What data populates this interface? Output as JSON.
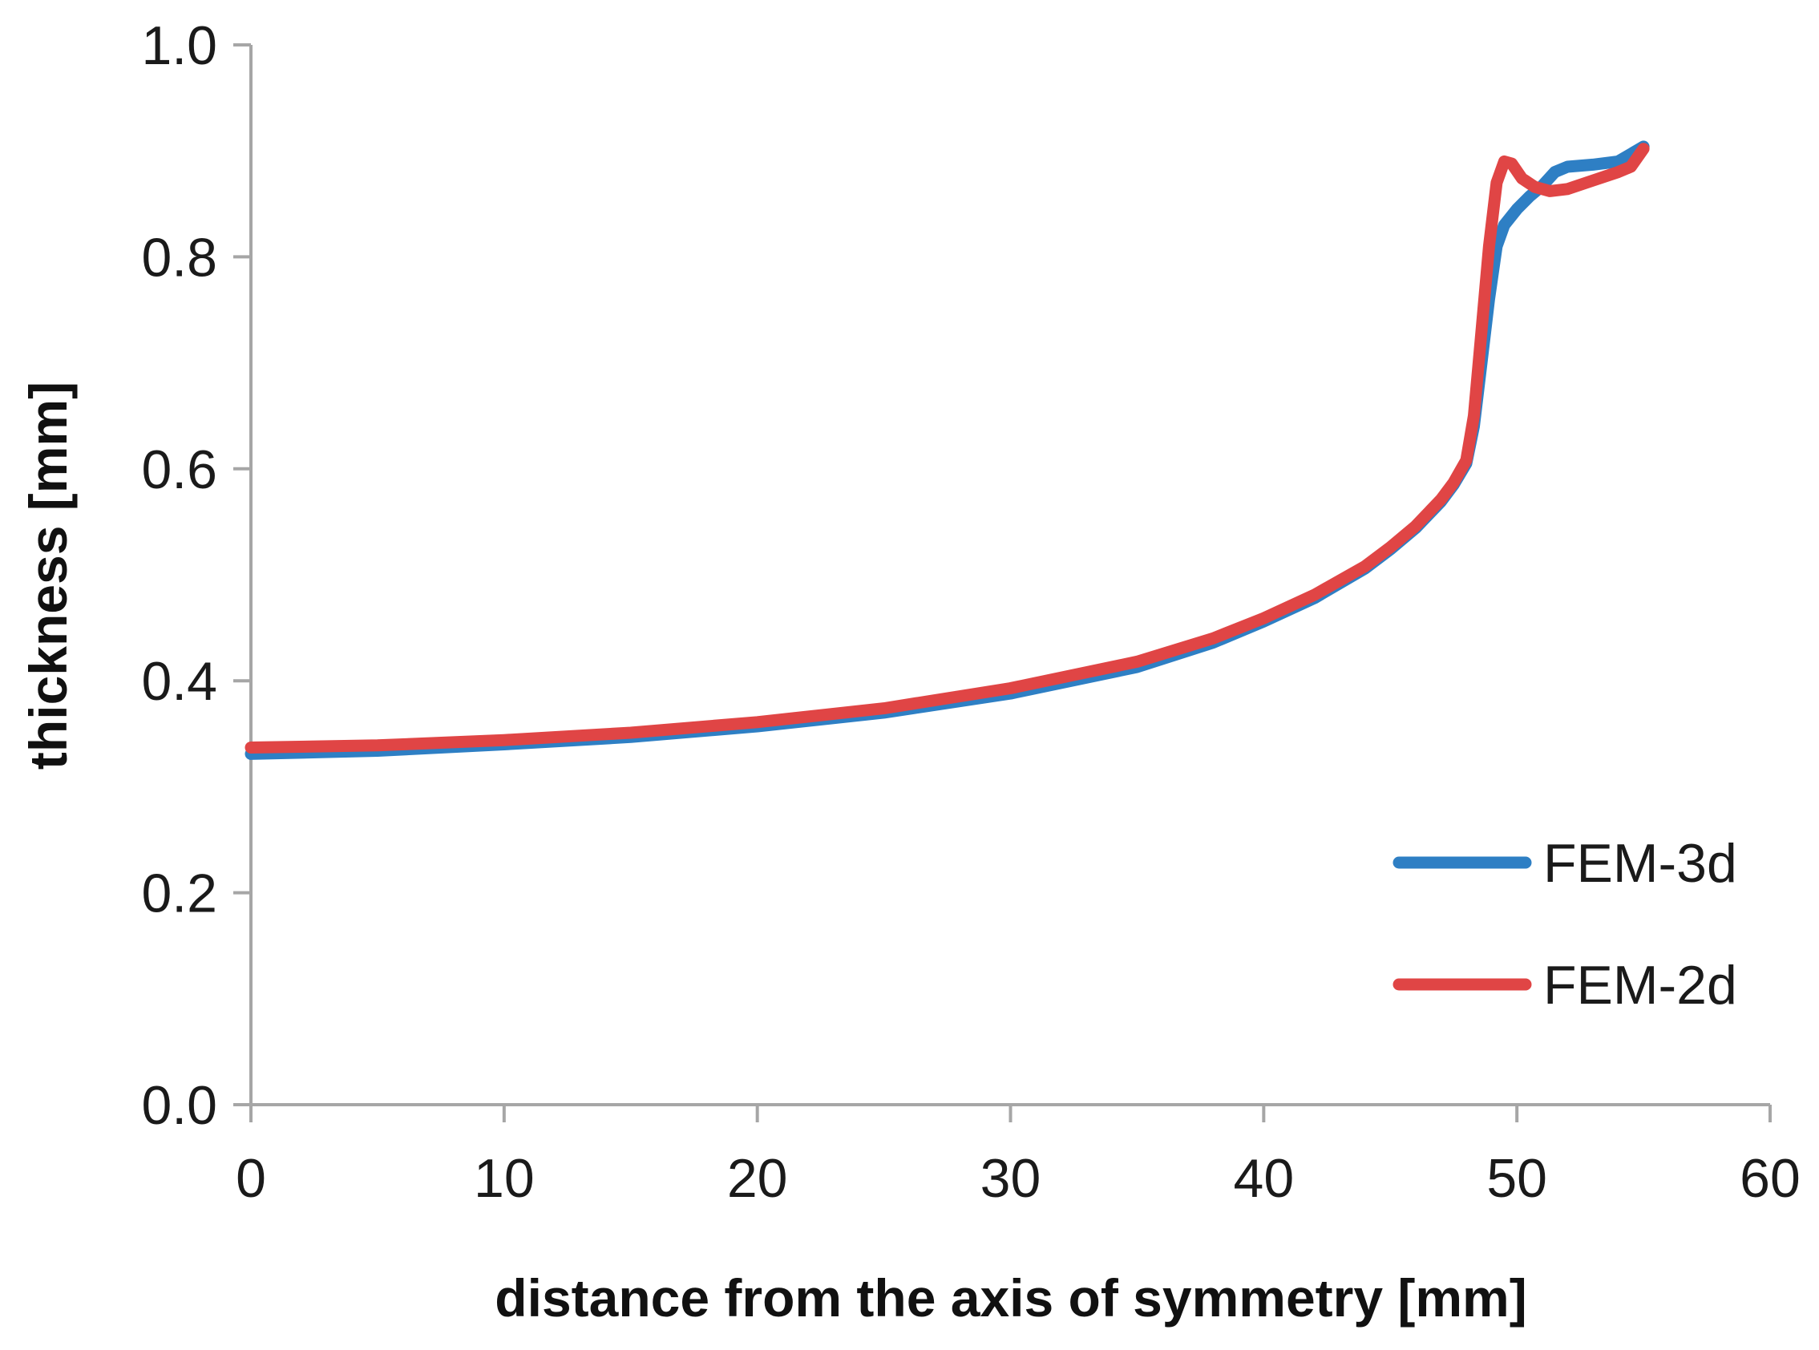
{
  "chart_data": {
    "type": "line",
    "title": "",
    "xlabel": "distance from the axis of symmetry [mm]",
    "ylabel": "thickness [mm]",
    "xlim": [
      0,
      60
    ],
    "ylim": [
      0.0,
      1.0
    ],
    "x_ticks": [
      0,
      10,
      20,
      30,
      40,
      50,
      60
    ],
    "y_ticks": [
      0.0,
      0.2,
      0.4,
      0.6,
      0.8,
      1.0
    ],
    "x_tick_labels": [
      "0",
      "10",
      "20",
      "30",
      "40",
      "50",
      "60"
    ],
    "y_tick_labels": [
      "0.0",
      "0.2",
      "0.4",
      "0.6",
      "0.8",
      "1.0"
    ],
    "grid": false,
    "legend_position": "bottom-right",
    "series": [
      {
        "name": "FEM-3d",
        "color": "#2e7fc4",
        "x": [
          0,
          5,
          10,
          15,
          20,
          25,
          30,
          35,
          38,
          40,
          42,
          44,
          45,
          46,
          47,
          47.5,
          48,
          48.3,
          48.6,
          48.9,
          49.2,
          49.5,
          50,
          50.5,
          51,
          51.5,
          52,
          53,
          54,
          55
        ],
        "y": [
          0.331,
          0.334,
          0.34,
          0.347,
          0.357,
          0.37,
          0.388,
          0.413,
          0.436,
          0.456,
          0.478,
          0.506,
          0.524,
          0.544,
          0.569,
          0.585,
          0.605,
          0.64,
          0.7,
          0.76,
          0.81,
          0.83,
          0.845,
          0.857,
          0.867,
          0.88,
          0.885,
          0.887,
          0.89,
          0.904
        ]
      },
      {
        "name": "FEM-2d",
        "color": "#e04545",
        "x": [
          0,
          5,
          10,
          15,
          20,
          25,
          30,
          35,
          38,
          40,
          42,
          44,
          45,
          46,
          47,
          47.5,
          48,
          48.3,
          48.6,
          48.9,
          49.2,
          49.5,
          49.8,
          50.2,
          50.7,
          51.3,
          52,
          53,
          54,
          54.5,
          55
        ],
        "y": [
          0.337,
          0.339,
          0.344,
          0.351,
          0.361,
          0.374,
          0.393,
          0.418,
          0.44,
          0.459,
          0.481,
          0.508,
          0.526,
          0.546,
          0.571,
          0.587,
          0.608,
          0.65,
          0.73,
          0.81,
          0.87,
          0.89,
          0.888,
          0.874,
          0.866,
          0.862,
          0.864,
          0.872,
          0.88,
          0.885,
          0.902
        ]
      }
    ]
  }
}
